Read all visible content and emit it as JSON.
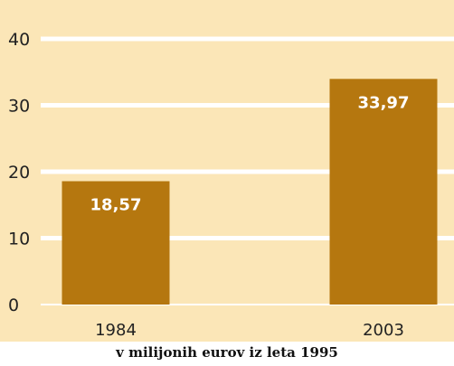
{
  "chart_data": {
    "type": "bar",
    "categories": [
      "1984",
      "2003"
    ],
    "values": [
      18.57,
      33.97
    ],
    "value_labels": [
      "18,57",
      "33,97"
    ],
    "y_ticks": [
      0,
      10,
      20,
      30,
      40
    ],
    "ylim": [
      0,
      40
    ],
    "grid": true,
    "xlabel": "v milijonih eurov iz leta 1995",
    "colors": {
      "background": "#fbe6b7",
      "bar": "#b5770f",
      "grid": "#ffffff",
      "label": "#ffffff"
    }
  }
}
